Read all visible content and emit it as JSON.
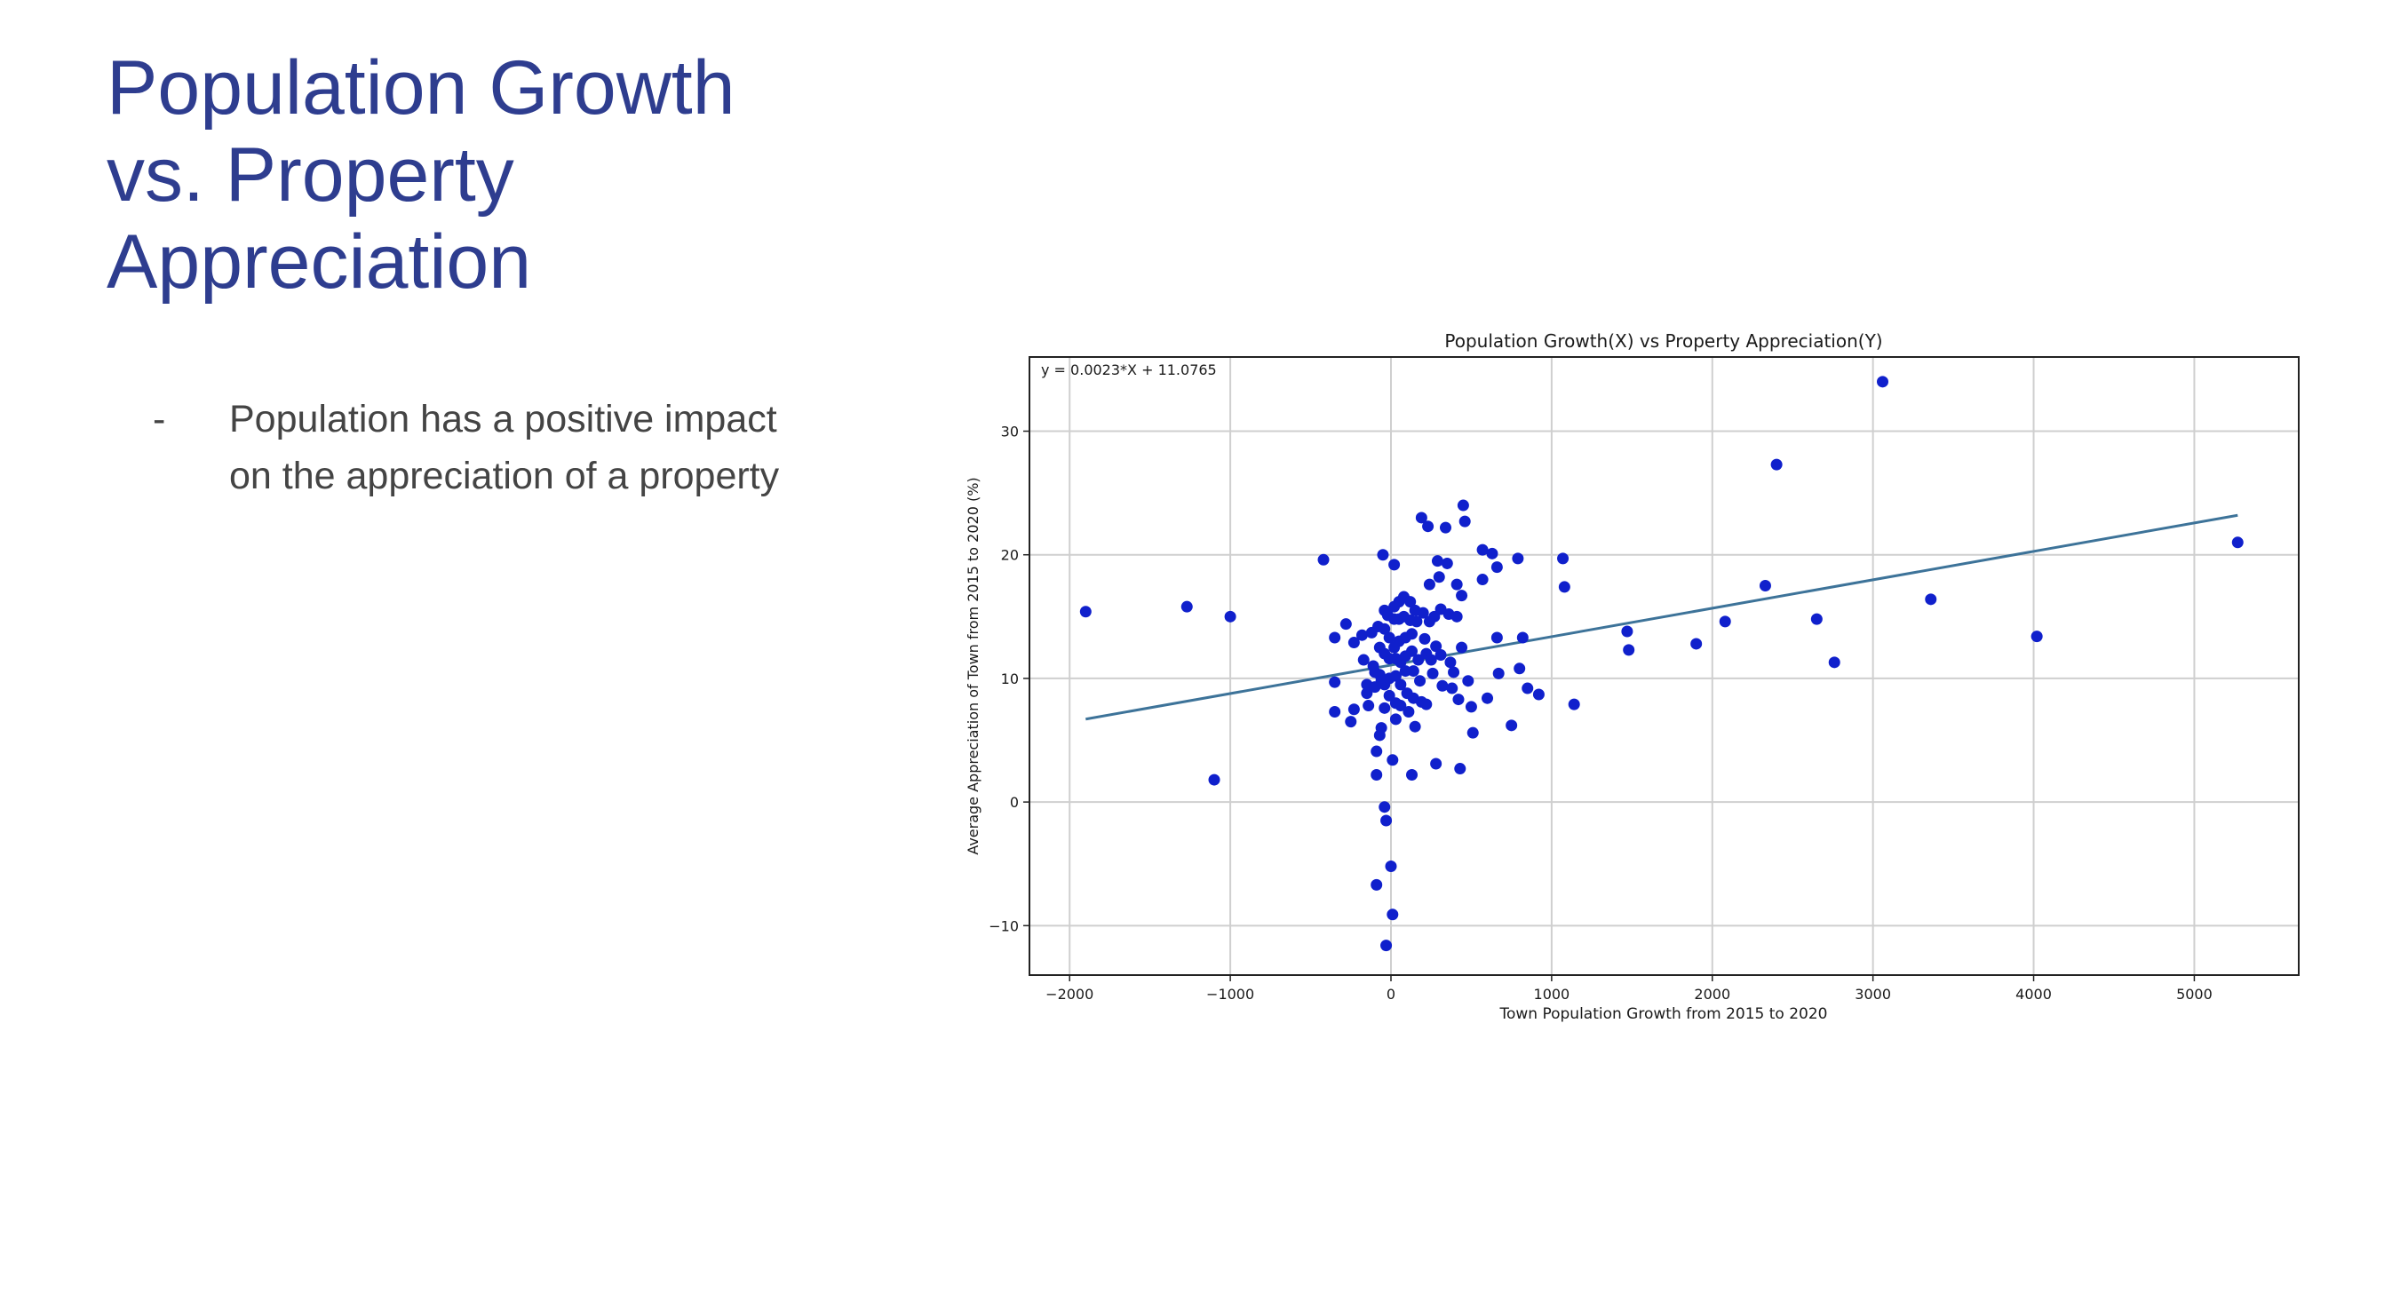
{
  "slide": {
    "title_lines": [
      "Population Growth",
      "vs. Property",
      "Appreciation"
    ],
    "bullets": [
      "Population has a positive impact on the appreciation of a property"
    ],
    "bullet_marker": "-"
  },
  "chart_data": {
    "type": "scatter",
    "title": "Population Growth(X) vs Property Appreciation(Y)",
    "xlabel": "Town Population Growth from 2015 to 2020",
    "ylabel": "Average Appreciation of Town from 2015 to 2020 (%)",
    "xlim": [
      -2250,
      5650
    ],
    "ylim": [
      -14,
      36
    ],
    "xticks": [
      -2000,
      -1000,
      0,
      1000,
      2000,
      3000,
      4000,
      5000
    ],
    "xtick_labels": [
      "−2000",
      "−1000",
      "0",
      "1000",
      "2000",
      "3000",
      "4000",
      "5000"
    ],
    "yticks": [
      -10,
      0,
      10,
      20,
      30
    ],
    "ytick_labels": [
      "−10",
      "0",
      "10",
      "20",
      "30"
    ],
    "grid": true,
    "point_color": "#1020cc",
    "line_color": "#3d7399",
    "annotation": "y = 0.0023*X + 11.0765",
    "regression": {
      "slope": 0.0023,
      "intercept": 11.0765,
      "x_range": [
        -1900,
        5270
      ]
    },
    "points": [
      [
        -1900,
        15.4
      ],
      [
        -1270,
        15.8
      ],
      [
        -1000,
        15.0
      ],
      [
        -1100,
        1.8
      ],
      [
        -420,
        19.6
      ],
      [
        -350,
        13.3
      ],
      [
        -350,
        9.7
      ],
      [
        -350,
        7.3
      ],
      [
        -280,
        14.4
      ],
      [
        -250,
        6.5
      ],
      [
        -230,
        12.9
      ],
      [
        -230,
        7.5
      ],
      [
        -180,
        13.5
      ],
      [
        -170,
        11.5
      ],
      [
        -150,
        9.5
      ],
      [
        -150,
        8.8
      ],
      [
        -140,
        7.8
      ],
      [
        -120,
        13.7
      ],
      [
        -110,
        11.0
      ],
      [
        -100,
        10.5
      ],
      [
        -100,
        9.3
      ],
      [
        -90,
        4.1
      ],
      [
        -90,
        2.2
      ],
      [
        -90,
        -6.7
      ],
      [
        -80,
        14.2
      ],
      [
        -70,
        12.5
      ],
      [
        -70,
        10.3
      ],
      [
        -60,
        9.8
      ],
      [
        -60,
        6.0
      ],
      [
        -70,
        5.4
      ],
      [
        -50,
        20.0
      ],
      [
        -40,
        15.5
      ],
      [
        -40,
        14.0
      ],
      [
        -40,
        12.0
      ],
      [
        -40,
        9.5
      ],
      [
        -40,
        7.6
      ],
      [
        -40,
        -0.4
      ],
      [
        -30,
        -1.5
      ],
      [
        -30,
        -11.6
      ],
      [
        -20,
        15.1
      ],
      [
        -10,
        13.3
      ],
      [
        -10,
        11.6
      ],
      [
        -10,
        10.0
      ],
      [
        -10,
        8.6
      ],
      [
        0,
        -5.2
      ],
      [
        10,
        -9.1
      ],
      [
        10,
        3.4
      ],
      [
        20,
        15.8
      ],
      [
        20,
        19.2
      ],
      [
        20,
        14.8
      ],
      [
        20,
        12.5
      ],
      [
        30,
        11.6
      ],
      [
        30,
        10.2
      ],
      [
        30,
        8.0
      ],
      [
        30,
        6.7
      ],
      [
        50,
        16.2
      ],
      [
        50,
        14.8
      ],
      [
        50,
        13.0
      ],
      [
        60,
        11.3
      ],
      [
        60,
        9.5
      ],
      [
        60,
        7.8
      ],
      [
        80,
        16.6
      ],
      [
        80,
        15.0
      ],
      [
        90,
        13.3
      ],
      [
        90,
        11.8
      ],
      [
        90,
        10.6
      ],
      [
        100,
        8.8
      ],
      [
        110,
        7.3
      ],
      [
        120,
        16.2
      ],
      [
        120,
        14.7
      ],
      [
        130,
        13.6
      ],
      [
        130,
        12.2
      ],
      [
        140,
        10.6
      ],
      [
        140,
        8.4
      ],
      [
        130,
        2.2
      ],
      [
        150,
        6.1
      ],
      [
        150,
        15.5
      ],
      [
        160,
        14.6
      ],
      [
        170,
        11.5
      ],
      [
        180,
        9.8
      ],
      [
        190,
        8.1
      ],
      [
        190,
        23.0
      ],
      [
        200,
        15.3
      ],
      [
        210,
        13.2
      ],
      [
        220,
        12.0
      ],
      [
        220,
        7.9
      ],
      [
        230,
        22.3
      ],
      [
        240,
        17.6
      ],
      [
        240,
        14.6
      ],
      [
        250,
        11.5
      ],
      [
        260,
        10.4
      ],
      [
        270,
        15.0
      ],
      [
        280,
        12.6
      ],
      [
        280,
        3.1
      ],
      [
        290,
        19.5
      ],
      [
        300,
        18.2
      ],
      [
        310,
        15.6
      ],
      [
        310,
        11.9
      ],
      [
        320,
        9.4
      ],
      [
        340,
        22.2
      ],
      [
        350,
        19.3
      ],
      [
        360,
        15.2
      ],
      [
        370,
        11.3
      ],
      [
        380,
        9.2
      ],
      [
        390,
        10.5
      ],
      [
        410,
        17.6
      ],
      [
        410,
        15.0
      ],
      [
        420,
        8.3
      ],
      [
        430,
        2.7
      ],
      [
        440,
        16.7
      ],
      [
        440,
        12.5
      ],
      [
        450,
        24.0
      ],
      [
        460,
        22.7
      ],
      [
        480,
        9.8
      ],
      [
        500,
        7.7
      ],
      [
        510,
        5.6
      ],
      [
        570,
        20.4
      ],
      [
        570,
        18.0
      ],
      [
        600,
        8.4
      ],
      [
        630,
        20.1
      ],
      [
        660,
        19.0
      ],
      [
        660,
        13.3
      ],
      [
        670,
        10.4
      ],
      [
        750,
        6.2
      ],
      [
        790,
        19.7
      ],
      [
        800,
        10.8
      ],
      [
        820,
        13.3
      ],
      [
        850,
        9.2
      ],
      [
        920,
        8.7
      ],
      [
        1070,
        19.7
      ],
      [
        1080,
        17.4
      ],
      [
        1140,
        7.9
      ],
      [
        1470,
        13.8
      ],
      [
        1480,
        12.3
      ],
      [
        1900,
        12.8
      ],
      [
        2080,
        14.6
      ],
      [
        2330,
        17.5
      ],
      [
        2400,
        27.3
      ],
      [
        2650,
        14.8
      ],
      [
        2760,
        11.3
      ],
      [
        3060,
        34.0
      ],
      [
        3360,
        16.4
      ],
      [
        4020,
        13.4
      ],
      [
        5270,
        21.0
      ]
    ]
  }
}
